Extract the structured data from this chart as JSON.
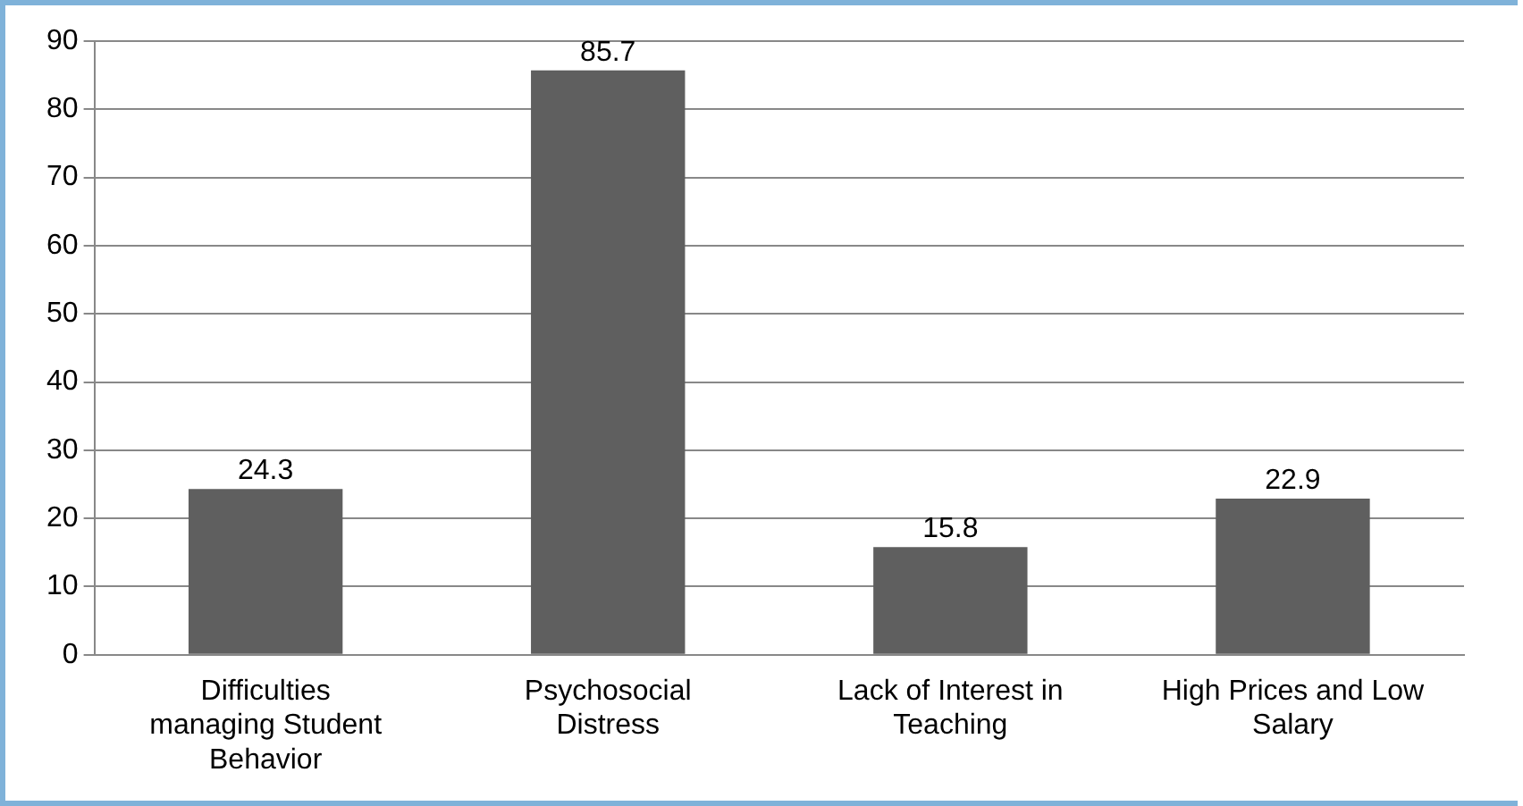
{
  "chart_data": {
    "type": "bar",
    "categories": [
      "Difficulties managing Student Behavior",
      "Psychosocial Distress",
      "Lack of Interest in Teaching",
      "High Prices and Low Salary"
    ],
    "values": [
      24.3,
      85.7,
      15.8,
      22.9
    ],
    "color": "#5f5f5f",
    "ylim": [
      0,
      90
    ],
    "yticks": [
      0,
      10,
      20,
      30,
      40,
      50,
      60,
      70,
      80,
      90
    ],
    "grid": "y",
    "data_labels": true
  }
}
